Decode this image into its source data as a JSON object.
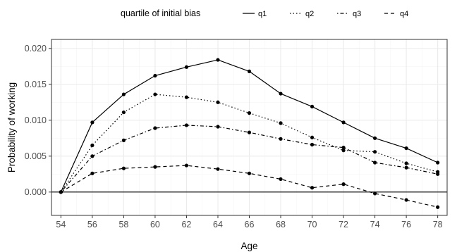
{
  "chart_data": {
    "type": "line",
    "x": [
      54,
      56,
      58,
      60,
      62,
      64,
      66,
      68,
      70,
      72,
      74,
      76,
      78
    ],
    "series": [
      {
        "name": "q1",
        "linetype": "solid",
        "values": [
          0.0,
          0.0097,
          0.0136,
          0.0162,
          0.0174,
          0.0184,
          0.0168,
          0.0137,
          0.0119,
          0.0097,
          0.0075,
          0.0061,
          0.0041
        ]
      },
      {
        "name": "q2",
        "linetype": "dotted",
        "values": [
          0.0,
          0.0065,
          0.0111,
          0.0136,
          0.0132,
          0.0125,
          0.011,
          0.0096,
          0.0076,
          0.0058,
          0.0056,
          0.004,
          0.0028
        ]
      },
      {
        "name": "q3",
        "linetype": "dotdash",
        "values": [
          0.0,
          0.005,
          0.0072,
          0.0089,
          0.0093,
          0.0091,
          0.0083,
          0.0074,
          0.0066,
          0.0062,
          0.0041,
          0.0034,
          0.0025
        ]
      },
      {
        "name": "q4",
        "linetype": "dashed",
        "values": [
          0.0,
          0.0026,
          0.0033,
          0.0035,
          0.0037,
          0.0032,
          0.0026,
          0.0018,
          0.0006,
          0.0011,
          -0.0002,
          -0.0011,
          -0.0021
        ]
      }
    ],
    "title": "",
    "xlabel": "Age",
    "ylabel": "Probability of working",
    "xlim": [
      53.4,
      78.6
    ],
    "ylim": [
      -0.00325,
      0.02125
    ],
    "xticks": [
      "54",
      "56",
      "58",
      "60",
      "62",
      "64",
      "66",
      "68",
      "70",
      "72",
      "74",
      "76",
      "78"
    ],
    "yticks": [
      "0.000",
      "0.005",
      "0.010",
      "0.015",
      "0.020"
    ],
    "ytick_values": [
      0.0,
      0.005,
      0.01,
      0.015,
      0.02
    ],
    "hline": 0.0,
    "grid": true,
    "legend": {
      "title": "quartile of initial bias",
      "position": "top",
      "entries": [
        "q1",
        "q2",
        "q3",
        "q4"
      ]
    },
    "colors": {
      "line": "#000000",
      "grid_major": "#ebebeb",
      "grid_minor": "#f5f5f5",
      "panel_border": "#333333",
      "tick_text": "#4d4d4d"
    }
  }
}
